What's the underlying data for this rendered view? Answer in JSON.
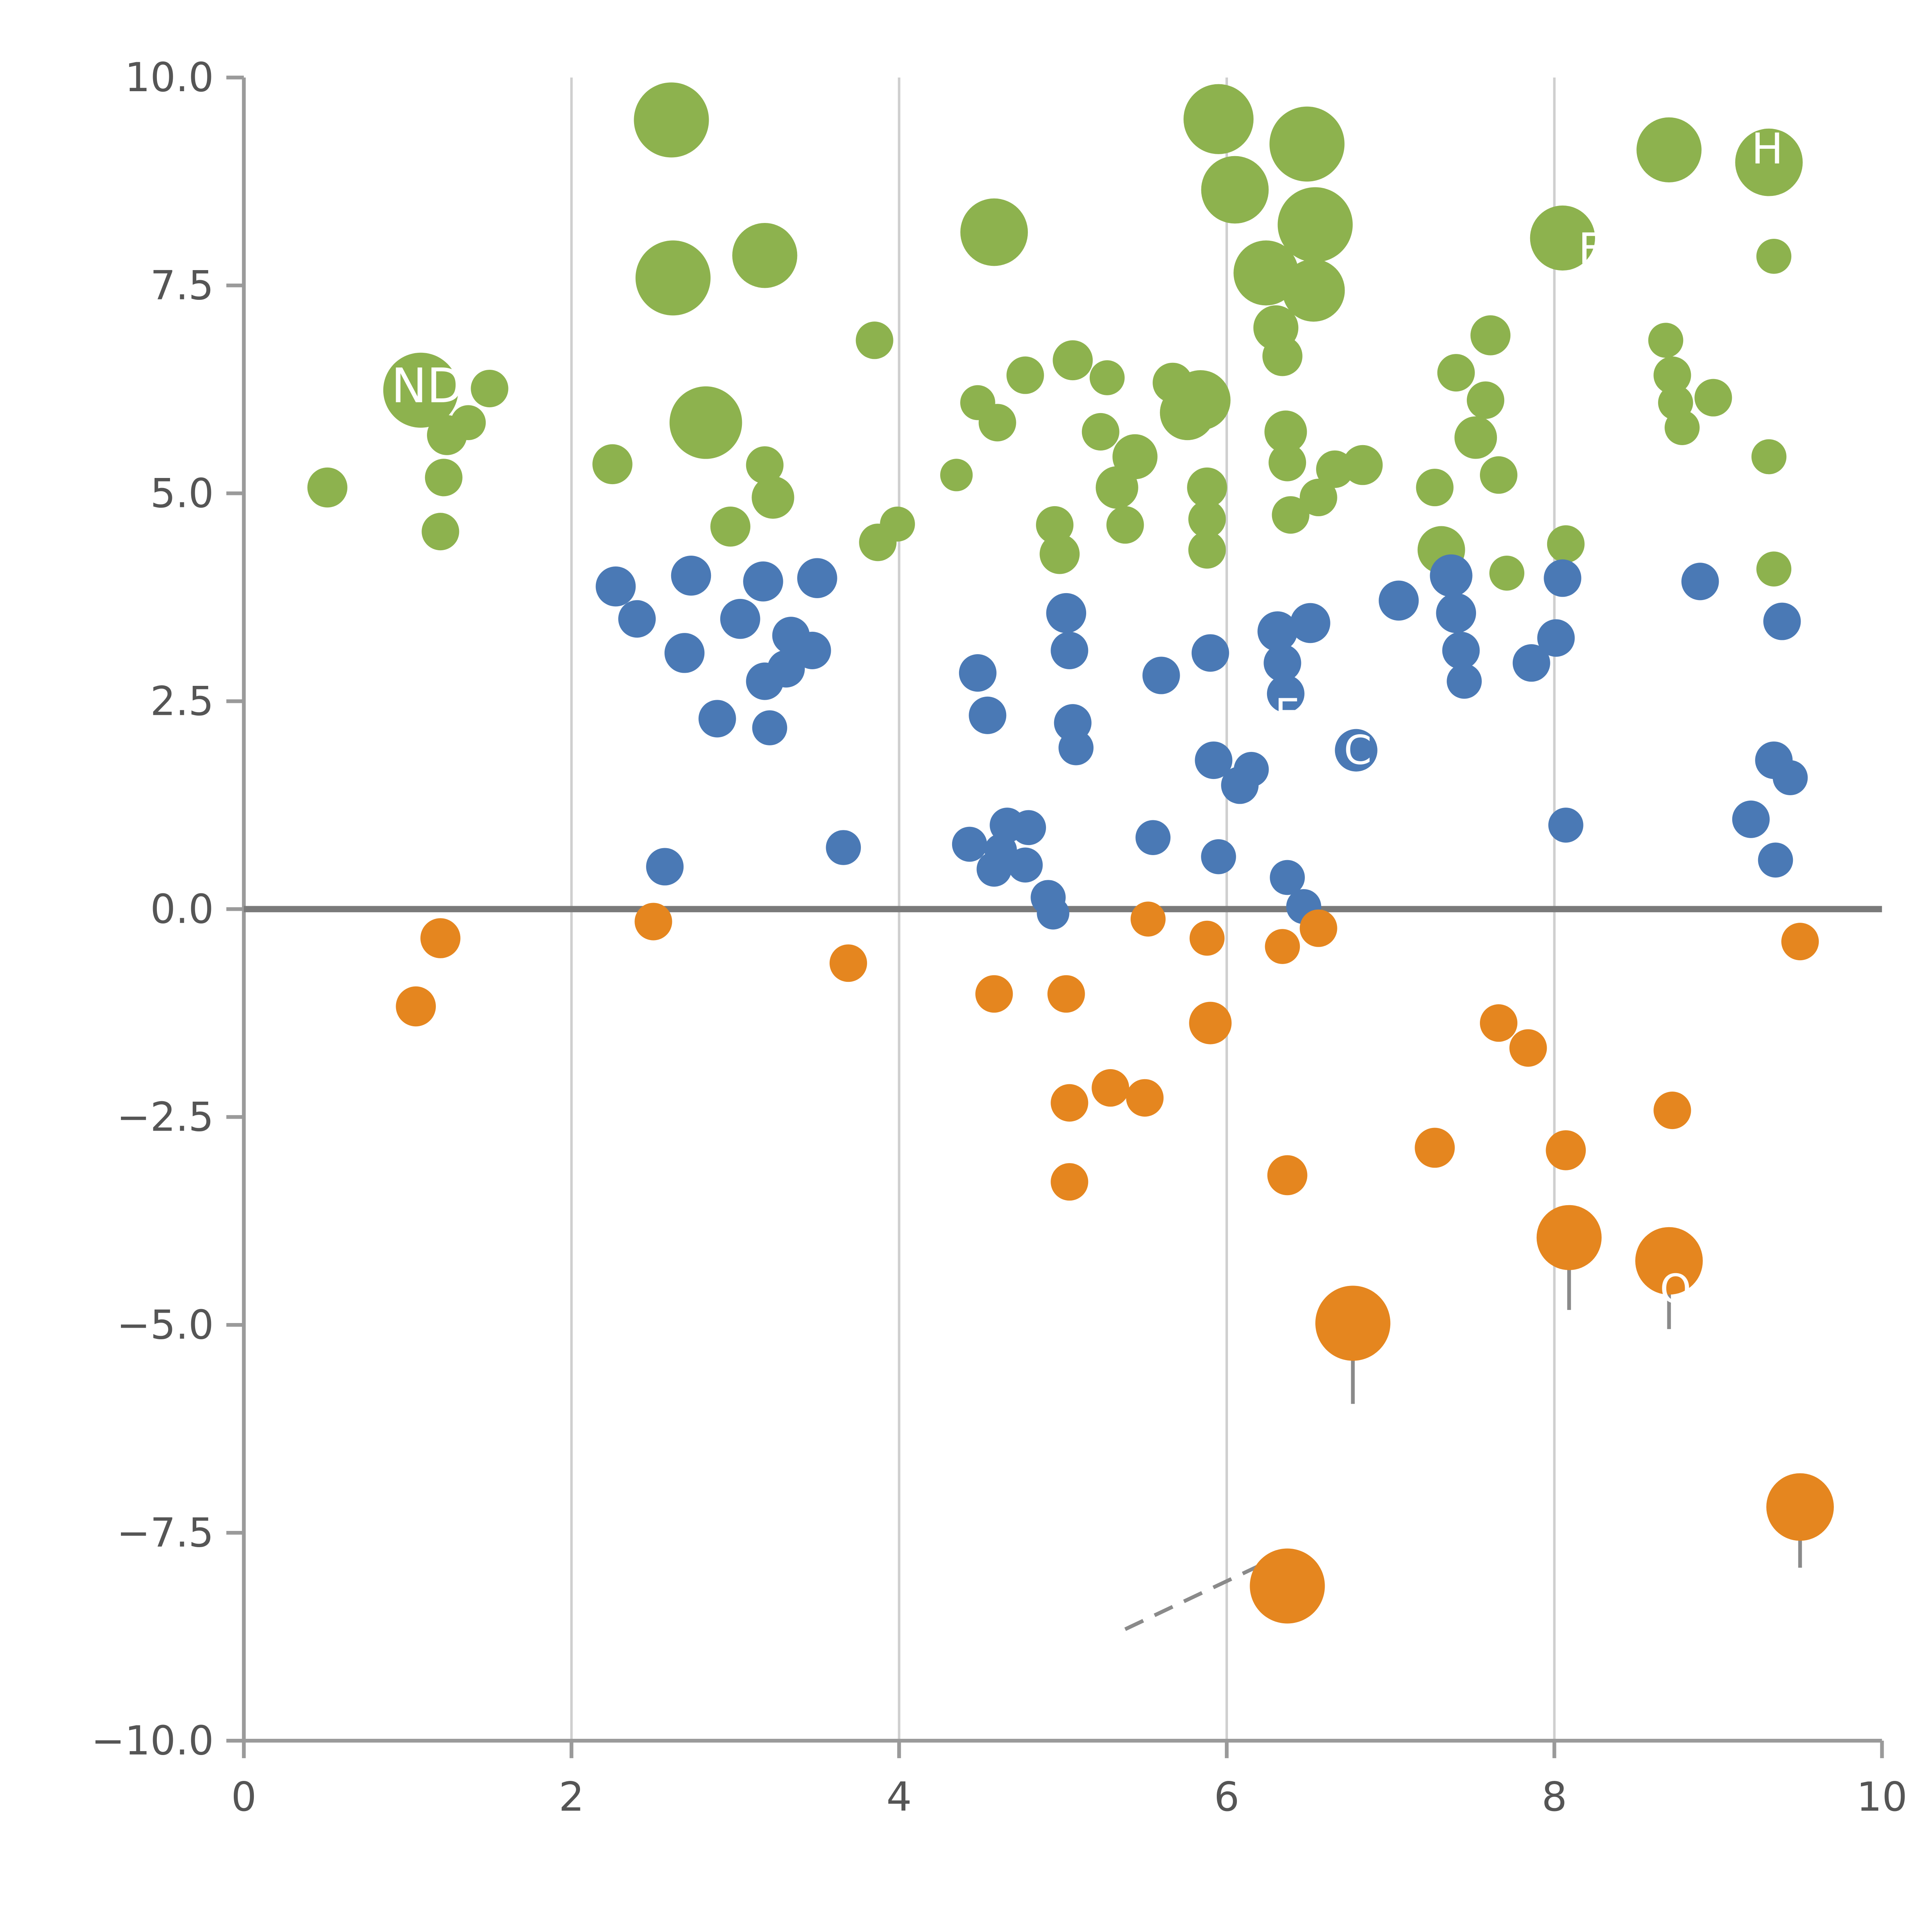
{
  "colors": {
    "green": "#8db24e",
    "blue": "#4a79b5",
    "orange": "#e5861f",
    "grid": "#cfcfcf",
    "spine": "#9a9a9a",
    "zero_line": "#7a7a7a",
    "tick_text": "#555555",
    "connector": "#8a8a8a",
    "annotation_text": "#ffffff",
    "background": "#ffffff"
  },
  "axes": {
    "x": {
      "range": [
        0,
        10
      ],
      "grid": [
        2,
        4,
        6,
        8
      ],
      "ticks": [
        {
          "v": 0,
          "label": "0"
        },
        {
          "v": 2,
          "label": "2"
        },
        {
          "v": 4,
          "label": "4"
        },
        {
          "v": 6,
          "label": "6"
        },
        {
          "v": 8,
          "label": "8"
        },
        {
          "v": 10,
          "label": "10"
        }
      ]
    },
    "y": {
      "range": [
        -10,
        10
      ],
      "ticks": [
        {
          "v": 10,
          "label": "10.0"
        },
        {
          "v": 7.5,
          "label": "7.5"
        },
        {
          "v": 5,
          "label": "5.0"
        },
        {
          "v": 2.5,
          "label": "2.5"
        },
        {
          "v": 0,
          "label": "0.0"
        },
        {
          "v": -2.5,
          "label": "−2.5"
        },
        {
          "v": -5,
          "label": "−5.0"
        },
        {
          "v": -7.5,
          "label": "−7.5"
        },
        {
          "v": -10,
          "label": "−10.0"
        }
      ]
    }
  },
  "chart_data": {
    "type": "scatter",
    "title": "",
    "xlabel": "",
    "ylabel": "",
    "x_range": [
      0,
      10
    ],
    "y_range": [
      -10,
      10
    ],
    "grid": "vertical-only",
    "zero_line_y": 0,
    "series": [
      {
        "name": "green-cluster",
        "color_key": "green",
        "points": [
          [
            0.51,
            5.07,
            16
          ],
          [
            1.08,
            6.24,
            30
          ],
          [
            1.24,
            5.7,
            16
          ],
          [
            1.22,
            5.19,
            15
          ],
          [
            1.2,
            4.54,
            15
          ],
          [
            1.37,
            5.85,
            14
          ],
          [
            1.5,
            6.26,
            15
          ],
          [
            2.25,
            5.35,
            16
          ],
          [
            2.61,
            9.49,
            30
          ],
          [
            2.62,
            7.59,
            30
          ],
          [
            2.82,
            5.85,
            29
          ],
          [
            2.97,
            4.6,
            16
          ],
          [
            3.18,
            7.86,
            26
          ],
          [
            3.18,
            5.34,
            15
          ],
          [
            3.23,
            4.95,
            17
          ],
          [
            3.85,
            6.84,
            15
          ],
          [
            3.87,
            4.41,
            15
          ],
          [
            3.99,
            4.63,
            14
          ],
          [
            4.35,
            5.22,
            13
          ],
          [
            4.48,
            6.09,
            14
          ],
          [
            4.58,
            8.14,
            27
          ],
          [
            4.6,
            5.85,
            15
          ],
          [
            4.77,
            6.42,
            15
          ],
          [
            4.95,
            4.62,
            15
          ],
          [
            4.98,
            4.27,
            16
          ],
          [
            5.06,
            6.6,
            16
          ],
          [
            5.23,
            5.74,
            15
          ],
          [
            5.27,
            6.39,
            14
          ],
          [
            5.33,
            5.07,
            17
          ],
          [
            5.38,
            4.62,
            15
          ],
          [
            5.44,
            5.44,
            18
          ],
          [
            5.67,
            6.33,
            16
          ],
          [
            5.76,
            5.97,
            22
          ],
          [
            5.84,
            6.12,
            24
          ],
          [
            5.88,
            5.07,
            16
          ],
          [
            5.88,
            4.69,
            15
          ],
          [
            5.88,
            4.32,
            15
          ],
          [
            5.95,
            9.5,
            28
          ],
          [
            6.05,
            8.65,
            27
          ],
          [
            6.24,
            7.65,
            26
          ],
          [
            6.3,
            6.99,
            18
          ],
          [
            6.34,
            6.65,
            16
          ],
          [
            6.36,
            5.74,
            17
          ],
          [
            6.37,
            5.37,
            15
          ],
          [
            6.39,
            4.74,
            15
          ],
          [
            6.49,
            9.2,
            30
          ],
          [
            6.54,
            8.23,
            30
          ],
          [
            6.53,
            7.44,
            25
          ],
          [
            6.56,
            4.95,
            15
          ],
          [
            6.66,
            5.29,
            15
          ],
          [
            6.83,
            5.34,
            16
          ],
          [
            7.27,
            5.07,
            15
          ],
          [
            7.31,
            4.32,
            19
          ],
          [
            7.4,
            6.45,
            15
          ],
          [
            7.52,
            5.67,
            17
          ],
          [
            7.58,
            6.12,
            15
          ],
          [
            7.61,
            6.9,
            16
          ],
          [
            7.66,
            5.22,
            15
          ],
          [
            7.71,
            4.04,
            14
          ],
          [
            8.05,
            8.07,
            26
          ],
          [
            8.07,
            4.39,
            15
          ],
          [
            8.7,
            9.13,
            26
          ],
          [
            8.68,
            6.84,
            14
          ],
          [
            8.72,
            6.42,
            15
          ],
          [
            8.74,
            6.09,
            14
          ],
          [
            8.78,
            5.79,
            14
          ],
          [
            8.97,
            6.15,
            15
          ],
          [
            9.31,
            8.98,
            27
          ],
          [
            9.34,
            7.85,
            14
          ],
          [
            9.31,
            5.44,
            14
          ],
          [
            9.34,
            4.09,
            14
          ]
        ]
      },
      {
        "name": "blue-cluster",
        "color_key": "blue",
        "points": [
          [
            2.27,
            3.88,
            16
          ],
          [
            2.4,
            3.49,
            15
          ],
          [
            2.57,
            0.51,
            15
          ],
          [
            2.69,
            3.08,
            16
          ],
          [
            2.73,
            4.01,
            16
          ],
          [
            2.89,
            2.29,
            15
          ],
          [
            3.03,
            3.49,
            16
          ],
          [
            3.17,
            3.94,
            16
          ],
          [
            3.18,
            2.74,
            15
          ],
          [
            3.21,
            2.18,
            14
          ],
          [
            3.31,
            2.89,
            15
          ],
          [
            3.34,
            3.29,
            15
          ],
          [
            3.47,
            3.11,
            15
          ],
          [
            3.5,
            3.98,
            16
          ],
          [
            3.66,
            0.74,
            14
          ],
          [
            4.43,
            0.78,
            14
          ],
          [
            4.48,
            2.84,
            15
          ],
          [
            4.54,
            2.33,
            15
          ],
          [
            4.58,
            0.48,
            14
          ],
          [
            4.62,
            0.71,
            13
          ],
          [
            4.66,
            1.01,
            14
          ],
          [
            4.77,
            0.53,
            14
          ],
          [
            4.79,
            0.98,
            14
          ],
          [
            4.91,
            0.14,
            14
          ],
          [
            4.94,
            -0.05,
            13
          ],
          [
            5.02,
            3.56,
            16
          ],
          [
            5.04,
            3.11,
            15
          ],
          [
            5.06,
            2.24,
            15
          ],
          [
            5.08,
            1.94,
            14
          ],
          [
            5.55,
            0.86,
            14
          ],
          [
            5.6,
            2.81,
            15
          ],
          [
            5.9,
            3.08,
            15
          ],
          [
            5.92,
            1.79,
            15
          ],
          [
            5.95,
            0.63,
            14
          ],
          [
            6.08,
            1.49,
            15
          ],
          [
            6.15,
            1.68,
            14
          ],
          [
            6.31,
            3.34,
            16
          ],
          [
            6.34,
            2.96,
            15
          ],
          [
            6.36,
            2.59,
            15
          ],
          [
            6.37,
            0.38,
            14
          ],
          [
            6.47,
            0.03,
            14
          ],
          [
            6.51,
            3.44,
            16
          ],
          [
            6.79,
            1.91,
            17
          ],
          [
            7.05,
            3.71,
            16
          ],
          [
            7.37,
            4.01,
            17
          ],
          [
            7.4,
            3.56,
            16
          ],
          [
            7.43,
            3.11,
            15
          ],
          [
            7.45,
            2.74,
            14
          ],
          [
            7.86,
            2.96,
            15
          ],
          [
            8.01,
            3.26,
            15
          ],
          [
            8.05,
            3.98,
            15
          ],
          [
            8.07,
            1.01,
            14
          ],
          [
            8.89,
            3.94,
            15
          ],
          [
            9.2,
            1.08,
            15
          ],
          [
            9.34,
            1.79,
            15
          ],
          [
            9.35,
            0.59,
            14
          ],
          [
            9.39,
            3.46,
            15
          ],
          [
            9.44,
            1.58,
            14
          ]
        ]
      },
      {
        "name": "orange-cluster",
        "color_key": "orange",
        "points": [
          [
            1.05,
            -1.17,
            16
          ],
          [
            1.2,
            -0.35,
            16
          ],
          [
            2.5,
            -0.15,
            15
          ],
          [
            3.69,
            -0.65,
            15
          ],
          [
            4.58,
            -1.02,
            15
          ],
          [
            5.02,
            -1.02,
            15
          ],
          [
            5.04,
            -2.33,
            15
          ],
          [
            5.04,
            -3.28,
            15
          ],
          [
            5.29,
            -2.15,
            15
          ],
          [
            5.5,
            -2.27,
            15
          ],
          [
            5.52,
            -0.12,
            14
          ],
          [
            5.88,
            -0.35,
            14
          ],
          [
            5.9,
            -1.37,
            17
          ],
          [
            6.34,
            -0.45,
            14
          ],
          [
            6.37,
            -3.2,
            16
          ],
          [
            6.56,
            -0.23,
            15
          ],
          [
            6.77,
            -4.98,
            30
          ],
          [
            7.27,
            -2.87,
            16
          ],
          [
            7.66,
            -1.37,
            15
          ],
          [
            7.84,
            -1.67,
            15
          ],
          [
            8.07,
            -2.9,
            16
          ],
          [
            8.09,
            -3.95,
            26
          ],
          [
            8.7,
            -4.23,
            27
          ],
          [
            8.72,
            -2.42,
            15
          ],
          [
            9.5,
            -0.39,
            15
          ],
          [
            9.5,
            -7.19,
            27
          ],
          [
            6.37,
            -8.14,
            30
          ]
        ]
      }
    ],
    "annotations": [
      {
        "text": "ND",
        "x": 1.12,
        "y": 6.3,
        "size": 38
      },
      {
        "text": "F",
        "x": 8.22,
        "y": 7.95,
        "size": 34
      },
      {
        "text": "H",
        "x": 9.3,
        "y": 9.15,
        "size": 34
      },
      {
        "text": "E",
        "x": 6.37,
        "y": 2.36,
        "size": 32
      },
      {
        "text": "C",
        "x": 6.8,
        "y": 1.92,
        "size": 32
      },
      {
        "text": "O",
        "x": 8.74,
        "y": -4.56,
        "size": 32
      }
    ],
    "connectors": [
      {
        "x1": 6.77,
        "y1": -5.35,
        "x2": 6.77,
        "y2": -5.95,
        "style": "solid"
      },
      {
        "x1": 8.09,
        "y1": -4.28,
        "x2": 8.09,
        "y2": -4.82,
        "style": "solid"
      },
      {
        "x1": 8.7,
        "y1": -4.55,
        "x2": 8.7,
        "y2": -5.05,
        "style": "solid"
      },
      {
        "x1": 9.5,
        "y1": -7.52,
        "x2": 9.5,
        "y2": -7.92,
        "style": "solid"
      },
      {
        "x1": 5.38,
        "y1": -8.66,
        "x2": 6.28,
        "y2": -7.82,
        "style": "dashed"
      }
    ],
    "legend": "none"
  }
}
